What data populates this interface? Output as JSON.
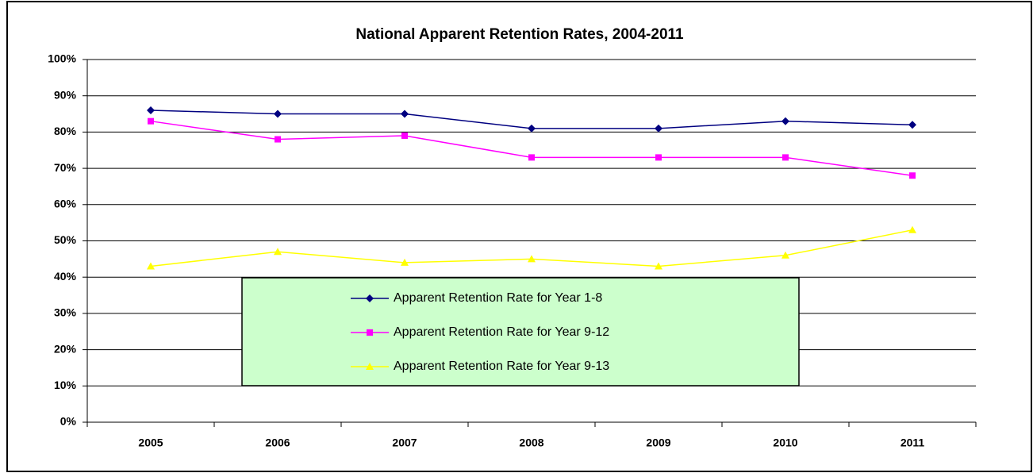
{
  "chart_data": {
    "type": "line",
    "title": "National Apparent Retention Rates, 2004-2011",
    "categories": [
      "2005",
      "2006",
      "2007",
      "2008",
      "2009",
      "2010",
      "2011"
    ],
    "series": [
      {
        "name": "Apparent Retention Rate for Year 1-8",
        "color": "#000080",
        "marker": "diamond",
        "values": [
          86,
          85,
          85,
          81,
          81,
          83,
          82
        ]
      },
      {
        "name": "Apparent Retention Rate for Year 9-12",
        "color": "#ff00ff",
        "marker": "square",
        "values": [
          83,
          78,
          79,
          73,
          73,
          73,
          68
        ]
      },
      {
        "name": "Apparent Retention Rate for Year 9-13",
        "color": "#ffff00",
        "marker": "triangle",
        "values": [
          43,
          47,
          44,
          45,
          43,
          46,
          53
        ]
      }
    ],
    "ylim": [
      0,
      100
    ],
    "yticks": [
      {
        "value": 0,
        "label": "0%"
      },
      {
        "value": 10,
        "label": "10%"
      },
      {
        "value": 20,
        "label": "20%"
      },
      {
        "value": 30,
        "label": "30%"
      },
      {
        "value": 40,
        "label": "40%"
      },
      {
        "value": 50,
        "label": "50%"
      },
      {
        "value": 60,
        "label": "60%"
      },
      {
        "value": 70,
        "label": "70%"
      },
      {
        "value": 80,
        "label": "80%"
      },
      {
        "value": 90,
        "label": "90%"
      },
      {
        "value": 100,
        "label": "100%"
      }
    ],
    "grid": true
  }
}
